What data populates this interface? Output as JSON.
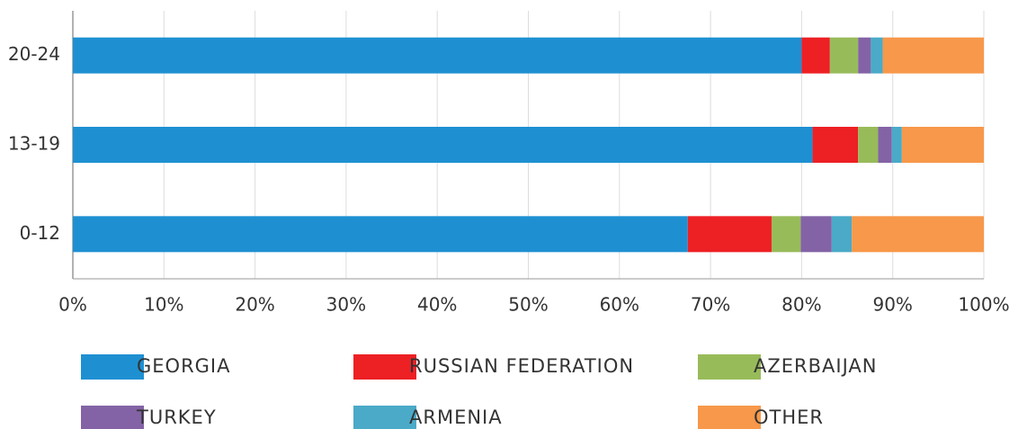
{
  "chart_data": {
    "type": "stacked_barh",
    "categories": [
      "20-24",
      "13-19",
      "0-12"
    ],
    "series": [
      {
        "name": "GEORGIA",
        "color": "#1e90d2",
        "values": [
          80.0,
          81.2,
          67.5
        ]
      },
      {
        "name": "RUSSIAN FEDERATION",
        "color": "#ed2024",
        "values": [
          3.1,
          5.0,
          9.2
        ]
      },
      {
        "name": "AZERBAIJAN",
        "color": "#98bb5a",
        "values": [
          3.1,
          2.2,
          3.2
        ]
      },
      {
        "name": "TURKEY",
        "color": "#8363a6",
        "values": [
          1.4,
          1.5,
          3.4
        ]
      },
      {
        "name": "ARMENIA",
        "color": "#4aaac8",
        "values": [
          1.3,
          1.1,
          2.2
        ]
      },
      {
        "name": "OTHER",
        "color": "#f7984a",
        "values": [
          11.1,
          9.0,
          14.5
        ]
      }
    ],
    "xlim": [
      0,
      100
    ],
    "xticks": [
      {
        "value": 0,
        "label": "0%"
      },
      {
        "value": 10,
        "label": "10%"
      },
      {
        "value": 20,
        "label": "20%"
      },
      {
        "value": 30,
        "label": "30%"
      },
      {
        "value": 40,
        "label": "40%"
      },
      {
        "value": 50,
        "label": "50%"
      },
      {
        "value": 60,
        "label": "60%"
      },
      {
        "value": 70,
        "label": "70%"
      },
      {
        "value": 80,
        "label": "80%"
      },
      {
        "value": 90,
        "label": "90%"
      },
      {
        "value": 100,
        "label": "100%"
      }
    ],
    "grid": true
  }
}
